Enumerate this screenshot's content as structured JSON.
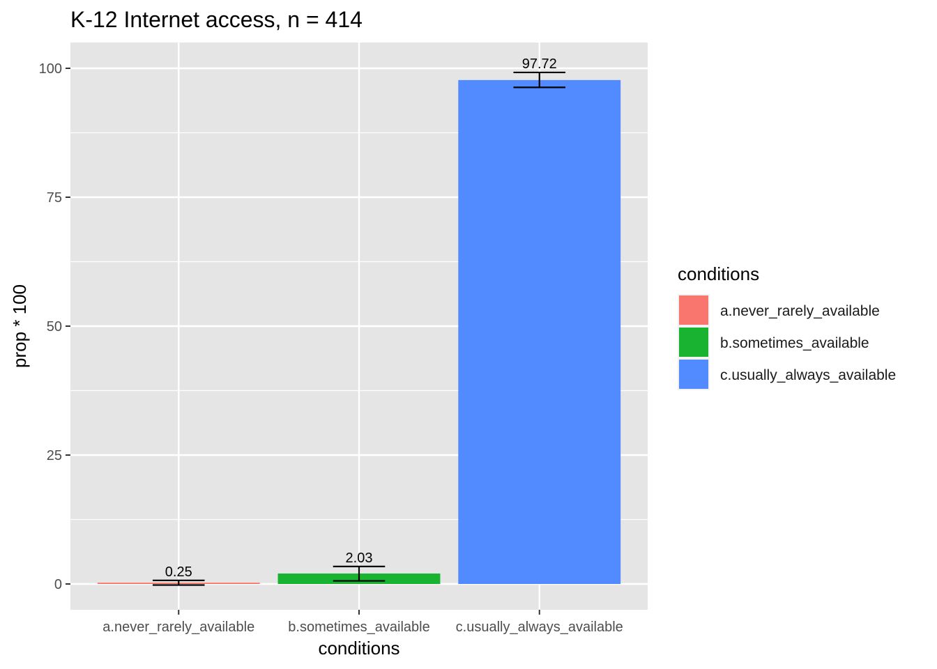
{
  "chart_data": {
    "type": "bar",
    "title": "K-12 Internet access, n = 414",
    "xlabel": "conditions",
    "ylabel": "prop * 100",
    "categories": [
      "a.never_rarely_available",
      "b.sometimes_available",
      "c.usually_always_available"
    ],
    "values": [
      0.25,
      2.03,
      97.72
    ],
    "error_bars": [
      {
        "low": -0.2,
        "high": 0.7
      },
      {
        "low": 0.6,
        "high": 3.4
      },
      {
        "low": 96.3,
        "high": 99.2
      }
    ],
    "data_labels": [
      "0.25",
      "2.03",
      "97.72"
    ],
    "colors": [
      "#F8766D",
      "#19B331",
      "#528AFF"
    ],
    "ylim": [
      -5,
      105
    ],
    "yticks": [
      0,
      25,
      50,
      75,
      100
    ],
    "ytick_labels": [
      "0",
      "25",
      "50",
      "75",
      "100"
    ],
    "grid": true,
    "panel_background": "#E5E5E5",
    "legend": {
      "title": "conditions",
      "position": "right",
      "entries": [
        "a.never_rarely_available",
        "b.sometimes_available",
        "c.usually_always_available"
      ]
    }
  }
}
